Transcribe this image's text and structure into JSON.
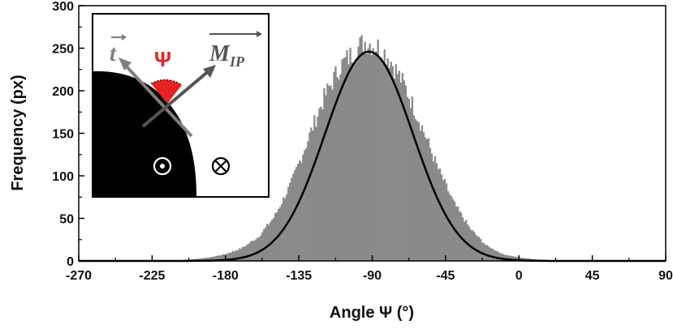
{
  "chart_data": {
    "type": "bar",
    "xlabel": "Angle Ψ (°)",
    "ylabel": "Frequency (px)",
    "xlim": [
      -270,
      90
    ],
    "ylim": [
      0,
      300
    ],
    "x_ticks": [
      "-270",
      "-225",
      "-180",
      "-135",
      "-90",
      "-45",
      "0",
      "45",
      "90"
    ],
    "y_ticks": [
      "0",
      "50",
      "100",
      "150",
      "200",
      "250",
      "300"
    ],
    "series": [
      {
        "kind": "histogram",
        "bin_width_deg": 1,
        "x": [
          -200,
          -190,
          -180,
          -170,
          -160,
          -150,
          -140,
          -130,
          -120,
          -110,
          -100,
          -95,
          -90,
          -85,
          -80,
          -70,
          -60,
          -50,
          -40,
          -30,
          -20,
          -10,
          0,
          10
        ],
        "values": [
          2,
          4,
          8,
          15,
          28,
          52,
          90,
          140,
          190,
          228,
          248,
          258,
          255,
          250,
          240,
          205,
          160,
          110,
          68,
          38,
          18,
          8,
          4,
          2
        ],
        "color": "#8a8a8a"
      },
      {
        "kind": "gaussian-fit",
        "amplitude": 246,
        "center": -92,
        "sigma": 27,
        "color": "#000000"
      }
    ],
    "grid": false,
    "inset": {
      "symbol_t": "t",
      "symbol_psi": "Ψ",
      "symbol_m": "M",
      "symbol_m_sub": "IP",
      "dot_symbol": "⊙",
      "cross_symbol": "⊗",
      "psi_color": "#e52222"
    }
  }
}
